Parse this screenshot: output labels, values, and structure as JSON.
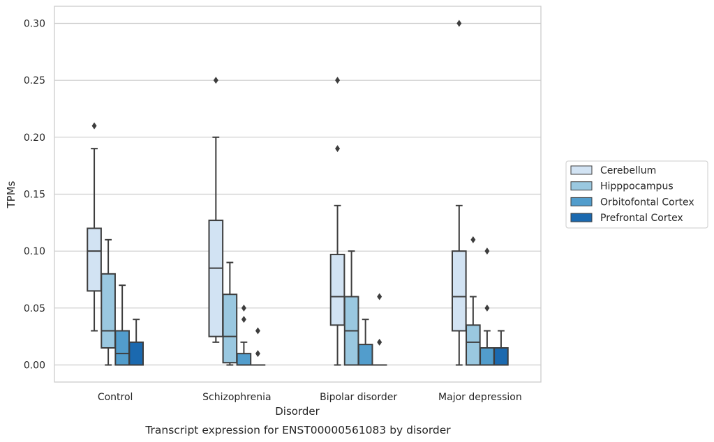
{
  "chart_data": {
    "type": "box",
    "caption": "Transcript expression for ENST00000561083 by disorder",
    "xlabel": "Disorder",
    "ylabel": "TPMs",
    "ylim": [
      -0.015,
      0.315
    ],
    "yticks": [
      0.0,
      0.05,
      0.1,
      0.15,
      0.2,
      0.25,
      0.3
    ],
    "ytick_labels": [
      "0.00",
      "0.05",
      "0.10",
      "0.15",
      "0.20",
      "0.25",
      "0.30"
    ],
    "grid": true,
    "legend_position": "right",
    "categories": [
      "Control",
      "Schizophrenia",
      "Bipolar disorder",
      "Major depression"
    ],
    "series": [
      {
        "name": "Cerebellum",
        "color": "#d2e3f3",
        "boxes": [
          {
            "whisker_low": 0.03,
            "q1": 0.065,
            "median": 0.1,
            "q3": 0.12,
            "whisker_high": 0.19,
            "outliers": [
              0.21
            ]
          },
          {
            "whisker_low": 0.02,
            "q1": 0.025,
            "median": 0.085,
            "q3": 0.127,
            "whisker_high": 0.2,
            "outliers": [
              0.25
            ]
          },
          {
            "whisker_low": 0.0,
            "q1": 0.035,
            "median": 0.06,
            "q3": 0.097,
            "whisker_high": 0.14,
            "outliers": [
              0.25,
              0.19
            ]
          },
          {
            "whisker_low": 0.0,
            "q1": 0.03,
            "median": 0.06,
            "q3": 0.1,
            "whisker_high": 0.14,
            "outliers": [
              0.3
            ]
          }
        ]
      },
      {
        "name": "Hipppocampus",
        "color": "#9ac8e0",
        "boxes": [
          {
            "whisker_low": 0.0,
            "q1": 0.015,
            "median": 0.03,
            "q3": 0.08,
            "whisker_high": 0.11,
            "outliers": []
          },
          {
            "whisker_low": 0.0,
            "q1": 0.002,
            "median": 0.025,
            "q3": 0.062,
            "whisker_high": 0.09,
            "outliers": []
          },
          {
            "whisker_low": 0.0,
            "q1": 0.0,
            "median": 0.03,
            "q3": 0.06,
            "whisker_high": 0.1,
            "outliers": []
          },
          {
            "whisker_low": 0.0,
            "q1": 0.0,
            "median": 0.02,
            "q3": 0.035,
            "whisker_high": 0.06,
            "outliers": [
              0.11
            ]
          }
        ]
      },
      {
        "name": "Orbitofontal Cortex",
        "color": "#529dcc",
        "boxes": [
          {
            "whisker_low": 0.0,
            "q1": 0.0,
            "median": 0.01,
            "q3": 0.03,
            "whisker_high": 0.07,
            "outliers": []
          },
          {
            "whisker_low": 0.0,
            "q1": 0.0,
            "median": 0.0,
            "q3": 0.01,
            "whisker_high": 0.02,
            "outliers": [
              0.05,
              0.04
            ]
          },
          {
            "whisker_low": 0.0,
            "q1": 0.0,
            "median": 0.0,
            "q3": 0.018,
            "whisker_high": 0.04,
            "outliers": []
          },
          {
            "whisker_low": 0.0,
            "q1": 0.0,
            "median": 0.0,
            "q3": 0.015,
            "whisker_high": 0.03,
            "outliers": [
              0.1,
              0.05
            ]
          }
        ]
      },
      {
        "name": "Prefrontal Cortex",
        "color": "#1b69af",
        "boxes": [
          {
            "whisker_low": 0.0,
            "q1": 0.0,
            "median": 0.0,
            "q3": 0.02,
            "whisker_high": 0.04,
            "outliers": []
          },
          {
            "whisker_low": 0.0,
            "q1": 0.0,
            "median": 0.0,
            "q3": 0.0,
            "whisker_high": 0.0,
            "outliers": [
              0.03,
              0.01
            ]
          },
          {
            "whisker_low": 0.0,
            "q1": 0.0,
            "median": 0.0,
            "q3": 0.0,
            "whisker_high": 0.0,
            "outliers": [
              0.06,
              0.02
            ]
          },
          {
            "whisker_low": 0.0,
            "q1": 0.0,
            "median": 0.0,
            "q3": 0.015,
            "whisker_high": 0.03,
            "outliers": []
          }
        ]
      }
    ]
  }
}
